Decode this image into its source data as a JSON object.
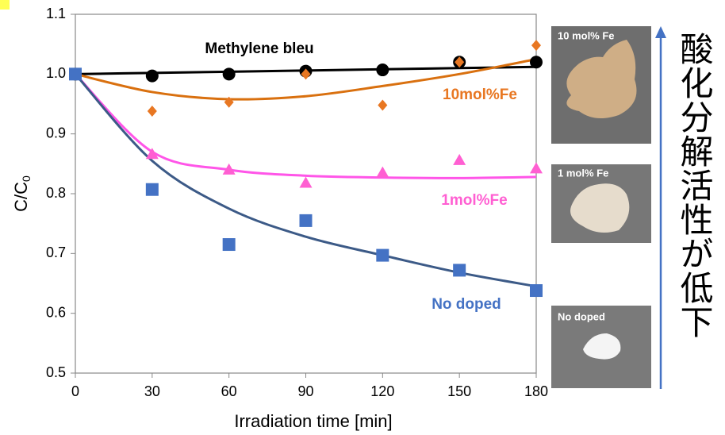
{
  "chart_data": {
    "type": "scatter",
    "xlabel": "Irradiation time  [min]",
    "ylabel": "C/C",
    "ylabel_subscript": "0",
    "x": [
      0,
      30,
      60,
      90,
      120,
      150,
      180
    ],
    "xlim": [
      0,
      180
    ],
    "xticks": [
      0,
      30,
      60,
      90,
      120,
      150,
      180
    ],
    "ylim": [
      0.5,
      1.1
    ],
    "yticks": [
      0.5,
      0.6,
      0.7,
      0.8,
      0.9,
      {
        "value": 1,
        "label": "1.0"
      },
      1.1
    ],
    "series": [
      {
        "name": "Methylene bleu",
        "color": "#000000",
        "line_color": "#000000",
        "marker": "circle",
        "values": [
          1.0,
          0.997,
          1.0,
          1.005,
          1.007,
          1.02,
          1.02
        ],
        "fit": [
          1.0,
          1.002,
          1.004,
          1.006,
          1.008,
          1.01,
          1.012
        ]
      },
      {
        "name": "10mol%Fe",
        "color": "#e87722",
        "line_color": "#d9700f",
        "marker": "diamond",
        "values": [
          1.0,
          0.938,
          0.953,
          1.0,
          0.948,
          1.02,
          1.048
        ],
        "fit": [
          1.0,
          0.97,
          0.958,
          0.963,
          0.98,
          1.0,
          1.025
        ]
      },
      {
        "name": "1mol%Fe",
        "color": "#ff5fd2",
        "line_color": "#ff55e8",
        "marker": "triangle",
        "values": [
          1.0,
          0.866,
          0.84,
          0.818,
          0.835,
          0.856,
          0.842
        ],
        "fit": [
          1.0,
          0.87,
          0.84,
          0.83,
          0.827,
          0.826,
          0.828
        ]
      },
      {
        "name": "No doped",
        "color": "#4472c4",
        "line_color": "#3c5a87",
        "marker": "square",
        "values": [
          1.0,
          0.807,
          0.715,
          0.755,
          0.697,
          0.672,
          0.638
        ],
        "fit": [
          1.0,
          0.855,
          0.775,
          0.728,
          0.697,
          0.668,
          0.645
        ]
      }
    ]
  },
  "photos": [
    {
      "label": "10 mol% Fe"
    },
    {
      "label": "1 mol% Fe"
    },
    {
      "label": "No doped"
    }
  ],
  "note": "酸化分解活性が低下"
}
